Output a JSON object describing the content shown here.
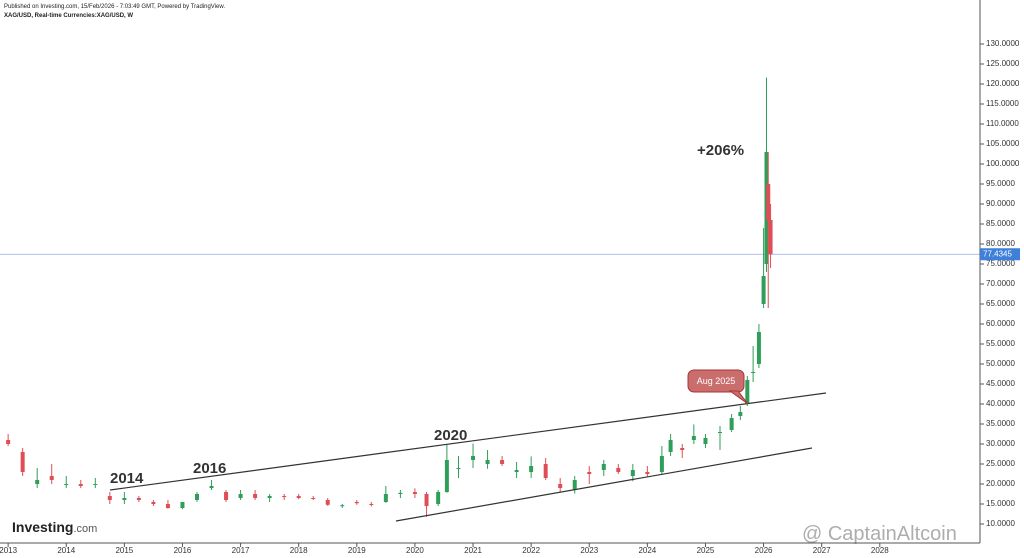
{
  "chart_data": {
    "type": "candlestick",
    "header": "Published on Investing.com, 15/Feb/2026 - 7:03:49 GMT, Powered by TradingView.",
    "title": "XAG/USD, Real-time Currencies:XAG/USD, W",
    "annotations": [
      "+206%",
      "2014",
      "2016",
      "2020",
      "Aug 2025"
    ],
    "logo": [
      "Investing",
      ".com"
    ],
    "watermark": "@ CaptainAltcoin",
    "up_color": "#2f9e5a",
    "down_color": "#e04e55",
    "last_price": 77.4345,
    "last_price_color": "#3d7fd9",
    "xlim": [
      2012.86,
      2029.38
    ],
    "xticks": [
      2013,
      2014,
      2015,
      2016,
      2017,
      2018,
      2019,
      2020,
      2021,
      2022,
      2023,
      2024,
      2025,
      2026,
      2027,
      2028
    ],
    "ylim": [
      5.25,
      141
    ],
    "yticks": [
      {
        "value": 10,
        "label": "10.0000"
      },
      {
        "value": 15,
        "label": "15.0000"
      },
      {
        "value": 20,
        "label": "20.0000"
      },
      {
        "value": 25,
        "label": "25.0000"
      },
      {
        "value": 30,
        "label": "30.0000"
      },
      {
        "value": 35,
        "label": "35.0000"
      },
      {
        "value": 40,
        "label": "40.0000"
      },
      {
        "value": 45,
        "label": "45.0000"
      },
      {
        "value": 50,
        "label": "50.0000"
      },
      {
        "value": 55,
        "label": "55.0000"
      },
      {
        "value": 60,
        "label": "60.0000"
      },
      {
        "value": 65,
        "label": "65.0000"
      },
      {
        "value": 70,
        "label": "70.0000"
      },
      {
        "value": 75,
        "label": "75.0000"
      },
      {
        "value": 80,
        "label": "80.0000"
      },
      {
        "value": 85,
        "label": "85.0000"
      },
      {
        "value": 90,
        "label": "90.0000"
      },
      {
        "value": 95,
        "label": "95.0000"
      },
      {
        "value": 100,
        "label": "100.0000"
      },
      {
        "value": 105,
        "label": "105.0000"
      },
      {
        "value": 110,
        "label": "110.0000"
      },
      {
        "value": 115,
        "label": "115.0000"
      },
      {
        "value": 120,
        "label": "120.0000"
      },
      {
        "value": 125,
        "label": "125.0000"
      },
      {
        "value": 130,
        "label": "130.0000"
      }
    ],
    "x": [
      2013.0,
      2013.25,
      2013.5,
      2013.75,
      2014.0,
      2014.25,
      2014.5,
      2014.75,
      2015.0,
      2015.25,
      2015.5,
      2015.75,
      2016.0,
      2016.25,
      2016.5,
      2016.75,
      2017.0,
      2017.25,
      2017.5,
      2017.75,
      2018.0,
      2018.25,
      2018.5,
      2018.75,
      2019.0,
      2019.25,
      2019.5,
      2019.75,
      2020.0,
      2020.2,
      2020.4,
      2020.55,
      2020.75,
      2021.0,
      2021.25,
      2021.5,
      2021.75,
      2022.0,
      2022.25,
      2022.5,
      2022.75,
      2023.0,
      2023.25,
      2023.5,
      2023.75,
      2024.0,
      2024.25,
      2024.4,
      2024.6,
      2024.8,
      2025.0,
      2025.25,
      2025.45,
      2025.6,
      2025.72,
      2025.82,
      2025.92,
      2026.0,
      2026.05,
      2026.08,
      2026.12
    ],
    "open": [
      31,
      28,
      20,
      22,
      20,
      20,
      20,
      17,
      16,
      16.5,
      15.5,
      15,
      14,
      16,
      19,
      18,
      16.5,
      17.5,
      16.5,
      17,
      17,
      16.5,
      16,
      14.5,
      15.5,
      15,
      15.5,
      17.5,
      18,
      17.5,
      15,
      18,
      24,
      26,
      25,
      26,
      23,
      23,
      25,
      20,
      18.5,
      23,
      23.5,
      24,
      22,
      23,
      23,
      28,
      29,
      31,
      30,
      33,
      33.5,
      37,
      40,
      48,
      50,
      65,
      75,
      95,
      86
    ],
    "high": [
      32.5,
      29,
      24,
      25,
      22,
      21,
      21.5,
      18,
      18,
      17,
      16,
      16,
      15.5,
      18,
      21,
      18.5,
      18.5,
      18.5,
      17.5,
      17.5,
      17.5,
      17,
      16.5,
      15,
      16,
      15.5,
      19.5,
      18.5,
      18.9,
      18,
      18.5,
      29.8,
      27,
      30.1,
      28.5,
      27,
      25.5,
      26.9,
      26.5,
      21.5,
      22,
      24.5,
      26,
      25,
      25,
      24.5,
      29.5,
      32.5,
      30,
      34.9,
      32.5,
      34.5,
      37.5,
      39.5,
      47,
      54.5,
      60,
      84,
      121.6,
      103,
      90
    ],
    "low": [
      29.5,
      22,
      19,
      20,
      19,
      19,
      19,
      15,
      15,
      15.5,
      14.5,
      13.8,
      13.7,
      15.5,
      18.5,
      15.5,
      16,
      16,
      15.5,
      16,
      16.2,
      16,
      14.5,
      14,
      14.8,
      14.4,
      15.3,
      16.5,
      16.5,
      11.8,
      14.5,
      17.8,
      21.5,
      24,
      23.8,
      24.5,
      21.5,
      21.5,
      21,
      18,
      17.6,
      20,
      22,
      22.5,
      20.7,
      21.9,
      22.5,
      27,
      26.5,
      30,
      29,
      28.5,
      33,
      36,
      39.5,
      45.5,
      49,
      64,
      73,
      64,
      74
    ],
    "close": [
      30,
      23,
      21,
      21,
      20,
      19.5,
      20,
      16,
      16.5,
      16,
      15,
      14,
      15.5,
      17.5,
      19.5,
      16,
      17.5,
      16.5,
      17,
      16.8,
      16.5,
      16.3,
      14.8,
      14.7,
      15.2,
      14.8,
      17.5,
      17.8,
      17.5,
      14.5,
      18,
      26,
      24,
      27,
      26,
      25,
      23.5,
      24.5,
      21.5,
      19,
      21,
      22.5,
      25,
      23,
      23.5,
      22.5,
      27,
      31,
      28.5,
      32,
      31.5,
      33,
      36.5,
      38,
      46,
      48,
      58,
      72,
      103,
      86,
      77.4345
    ]
  }
}
